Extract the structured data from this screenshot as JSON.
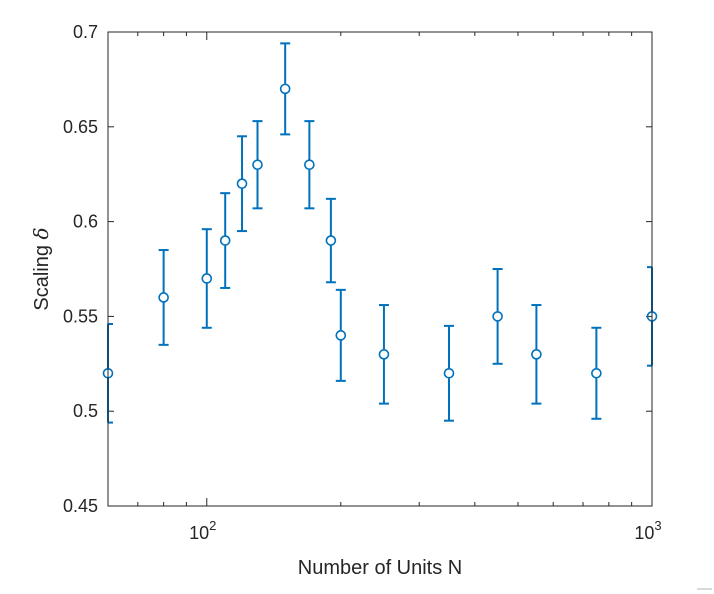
{
  "chart_data": {
    "type": "scatter",
    "xscale": "log",
    "xlim": [
      60,
      1000
    ],
    "ylim": [
      0.45,
      0.7
    ],
    "xlabel": "Number of Units N",
    "ylabel_text": "Scaling ",
    "ylabel_symbol": "δ",
    "title": "",
    "grid": false,
    "legend": "none",
    "marker": "open-circle",
    "errorbars": true,
    "series_color": "#0072BD",
    "axis_color": "#262626",
    "x_ticks": [
      {
        "value": 100,
        "base": "10",
        "exponent": "2"
      },
      {
        "value": 1000,
        "base": "10",
        "exponent": "3"
      }
    ],
    "y_ticks": [
      {
        "value": 0.45,
        "label": "0.45"
      },
      {
        "value": 0.5,
        "label": "0.5"
      },
      {
        "value": 0.55,
        "label": "0.55"
      },
      {
        "value": 0.6,
        "label": "0.6"
      },
      {
        "value": 0.65,
        "label": "0.65"
      },
      {
        "value": 0.7,
        "label": "0.7"
      }
    ],
    "points": [
      {
        "x": 60,
        "y": 0.52,
        "lo": 0.494,
        "hi": 0.546
      },
      {
        "x": 80,
        "y": 0.56,
        "lo": 0.535,
        "hi": 0.585
      },
      {
        "x": 100,
        "y": 0.57,
        "lo": 0.544,
        "hi": 0.596
      },
      {
        "x": 110,
        "y": 0.59,
        "lo": 0.565,
        "hi": 0.615
      },
      {
        "x": 120,
        "y": 0.62,
        "lo": 0.595,
        "hi": 0.645
      },
      {
        "x": 130,
        "y": 0.63,
        "lo": 0.607,
        "hi": 0.653
      },
      {
        "x": 150,
        "y": 0.67,
        "lo": 0.646,
        "hi": 0.694
      },
      {
        "x": 170,
        "y": 0.63,
        "lo": 0.607,
        "hi": 0.653
      },
      {
        "x": 190,
        "y": 0.59,
        "lo": 0.568,
        "hi": 0.612
      },
      {
        "x": 200,
        "y": 0.54,
        "lo": 0.516,
        "hi": 0.564
      },
      {
        "x": 250,
        "y": 0.53,
        "lo": 0.504,
        "hi": 0.556
      },
      {
        "x": 350,
        "y": 0.52,
        "lo": 0.495,
        "hi": 0.545
      },
      {
        "x": 450,
        "y": 0.55,
        "lo": 0.525,
        "hi": 0.575
      },
      {
        "x": 550,
        "y": 0.53,
        "lo": 0.504,
        "hi": 0.556
      },
      {
        "x": 750,
        "y": 0.52,
        "lo": 0.496,
        "hi": 0.544
      },
      {
        "x": 1000,
        "y": 0.55,
        "lo": 0.524,
        "hi": 0.576
      }
    ]
  }
}
